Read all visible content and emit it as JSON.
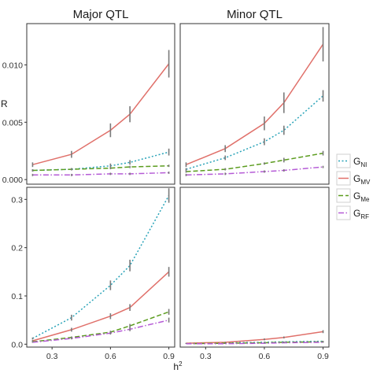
{
  "chart_data": {
    "type": "line",
    "facet_columns": [
      "Major QTL",
      "Minor QTL"
    ],
    "xlabel_base": "h",
    "xlabel_sup": "2",
    "ylabel_top": "R",
    "x_ticks": [
      "0.3",
      "0.6",
      "0.9"
    ],
    "x_tick_values": [
      0.3,
      0.6,
      0.9
    ],
    "xlim": [
      0.17,
      0.93
    ],
    "legend_position": "right",
    "series": [
      {
        "name": "G",
        "subscript": "NI",
        "color": "#29a3b8",
        "dash": "2,2.5"
      },
      {
        "name": "G",
        "subscript": "MV",
        "color": "#e0706a",
        "dash": ""
      },
      {
        "name": "G",
        "subscript": "Me",
        "color": "#5b9c1e",
        "dash": "6,3"
      },
      {
        "name": "G",
        "subscript": "RF",
        "color": "#b55bd6",
        "dash": "7,2.5,1.5,2.5"
      }
    ],
    "x": [
      0.2,
      0.4,
      0.6,
      0.7,
      0.9
    ],
    "rows": [
      {
        "y_ticks": [
          "0.000",
          "0.005",
          "0.010"
        ],
        "y_tick_values": [
          0.0,
          0.005,
          0.01
        ],
        "ylim": [
          -0.0004,
          0.0136
        ],
        "panels": [
          {
            "facet": "Major QTL",
            "values": [
              [
                0.0008,
                0.0009,
                0.0012,
                0.0015,
                0.0024
              ],
              [
                0.0013,
                0.0022,
                0.0043,
                0.0057,
                0.0101
              ],
              [
                0.0008,
                0.0009,
                0.001,
                0.0011,
                0.0012
              ],
              [
                0.0004,
                0.0004,
                0.0005,
                0.0005,
                0.0006
              ]
            ],
            "errors": [
              [
                0.0001,
                0.0001,
                0.0002,
                0.0002,
                0.0003
              ],
              [
                0.0002,
                0.0003,
                0.0006,
                0.0007,
                0.0012
              ],
              [
                0.0001,
                0.0001,
                0.0001,
                0.0001,
                0.0001
              ],
              [
                0.0001,
                0.0001,
                0.0001,
                0.0001,
                0.0001
              ]
            ]
          },
          {
            "facet": "Minor QTL",
            "values": [
              [
                0.0009,
                0.0019,
                0.0033,
                0.0043,
                0.0073
              ],
              [
                0.0013,
                0.0027,
                0.0049,
                0.0067,
                0.0118
              ],
              [
                0.0007,
                0.0009,
                0.0014,
                0.0017,
                0.0023
              ],
              [
                0.0004,
                0.0005,
                0.0007,
                0.0008,
                0.0011
              ]
            ],
            "errors": [
              [
                0.0001,
                0.0002,
                0.0003,
                0.0004,
                0.0005
              ],
              [
                0.0002,
                0.0003,
                0.0006,
                0.0009,
                0.0015
              ],
              [
                0.0001,
                0.0001,
                0.0001,
                0.0002,
                0.0002
              ],
              [
                0.0001,
                0.0001,
                0.0001,
                0.0001,
                0.0001
              ]
            ]
          }
        ]
      },
      {
        "y_ticks": [
          "0.0",
          "0.1",
          "0.2",
          "0.3"
        ],
        "y_tick_values": [
          0.0,
          0.1,
          0.2,
          0.3
        ],
        "ylim": [
          -0.006,
          0.325
        ],
        "panels": [
          {
            "facet": "Major QTL",
            "values": [
              [
                0.012,
                0.055,
                0.122,
                0.163,
                0.308
              ],
              [
                0.007,
                0.03,
                0.058,
                0.076,
                0.15
              ],
              [
                0.005,
                0.014,
                0.025,
                0.038,
                0.067
              ],
              [
                0.004,
                0.012,
                0.023,
                0.031,
                0.05
              ]
            ],
            "errors": [
              [
                0.002,
                0.006,
                0.01,
                0.012,
                0.015
              ],
              [
                0.002,
                0.004,
                0.006,
                0.007,
                0.01
              ],
              [
                0.001,
                0.002,
                0.003,
                0.004,
                0.006
              ],
              [
                0.001,
                0.002,
                0.003,
                0.004,
                0.005
              ]
            ]
          },
          {
            "facet": "Minor QTL",
            "values": [
              [
                0.002,
                0.003,
                0.004,
                0.005,
                0.006
              ],
              [
                0.002,
                0.004,
                0.01,
                0.014,
                0.026
              ],
              [
                0.001,
                0.002,
                0.003,
                0.004,
                0.005
              ],
              [
                0.001,
                0.001,
                0.002,
                0.003,
                0.004
              ]
            ],
            "errors": [
              [
                0.0005,
                0.0005,
                0.0008,
                0.0008,
                0.001
              ],
              [
                0.0005,
                0.001,
                0.002,
                0.002,
                0.003
              ],
              [
                0.0005,
                0.0005,
                0.0008,
                0.0008,
                0.001
              ],
              [
                0.0005,
                0.0005,
                0.0008,
                0.0008,
                0.001
              ]
            ]
          }
        ]
      }
    ]
  }
}
